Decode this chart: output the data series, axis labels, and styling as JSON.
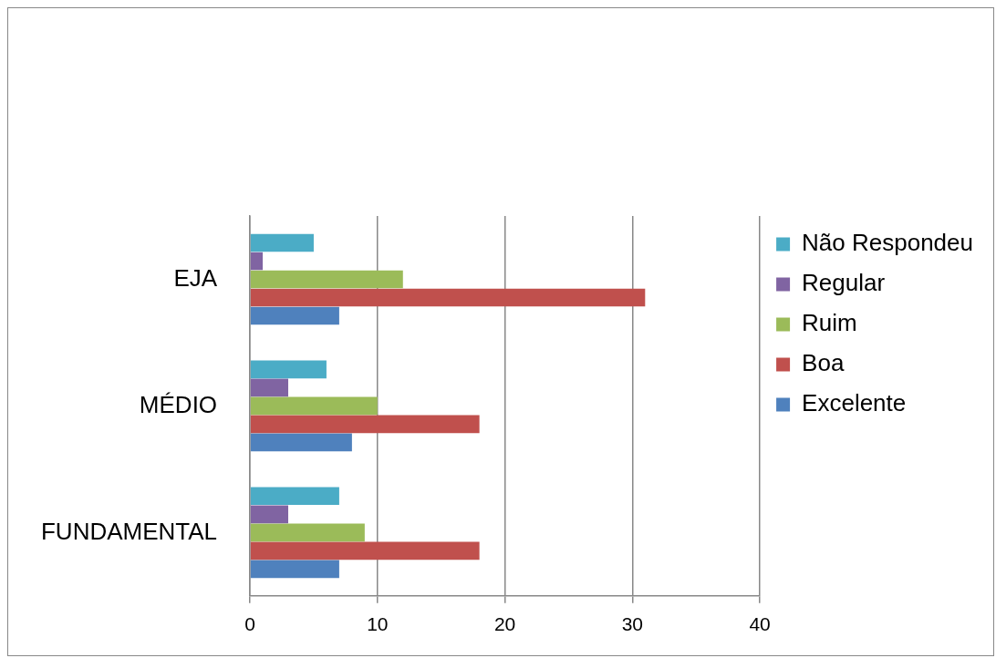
{
  "chart_data": {
    "type": "bar",
    "orientation": "horizontal",
    "categories": [
      "EJA",
      "MÉDIO",
      "FUNDAMENTAL"
    ],
    "series": [
      {
        "name": "Não Respondeu",
        "color": "#4bacc6",
        "values": [
          5,
          6,
          7
        ]
      },
      {
        "name": "Regular",
        "color": "#8064a2",
        "values": [
          1,
          3,
          3
        ]
      },
      {
        "name": "Ruim",
        "color": "#9bbb59",
        "values": [
          12,
          10,
          9
        ]
      },
      {
        "name": "Boa",
        "color": "#c0504d",
        "values": [
          31,
          18,
          18
        ]
      },
      {
        "name": "Excelente",
        "color": "#4f81bd",
        "values": [
          7,
          8,
          7
        ]
      }
    ],
    "xlim": [
      0,
      40
    ],
    "xticks": [
      0,
      10,
      20,
      30,
      40
    ],
    "grid": "x",
    "legend": "right"
  }
}
